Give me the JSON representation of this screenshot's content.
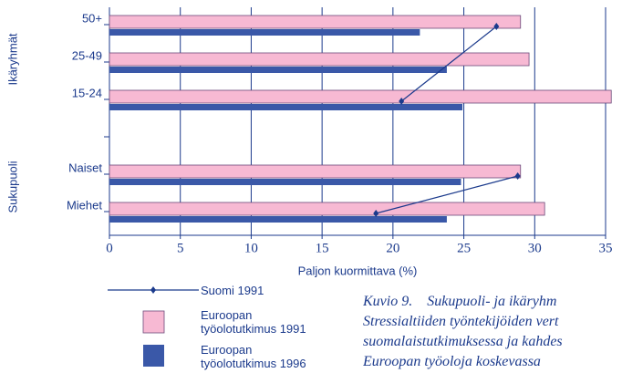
{
  "chart_data": {
    "type": "bar",
    "orientation": "horizontal",
    "categories": [
      "50+",
      "25-49",
      "15-24",
      null,
      "Naiset",
      "Miehet"
    ],
    "group_labels": [
      "Ikäryhmät",
      "Sukupuoli"
    ],
    "xlabel": "Paljon kuormittava (%)",
    "xlim": [
      0,
      35
    ],
    "xticks": [
      0,
      5,
      10,
      15,
      20,
      25,
      30,
      35
    ],
    "grid": true,
    "series": [
      {
        "name": "Suomi 1991",
        "type": "line",
        "color": "#1b3a8c",
        "values": [
          27.3,
          null,
          20.6,
          null,
          28.8,
          18.8
        ]
      },
      {
        "name": "Euroopan työolotutkimus 1991",
        "type": "bar",
        "color": "#f7b9d3",
        "values": [
          29,
          29.6,
          35.4,
          null,
          29,
          30.7
        ]
      },
      {
        "name": "Euroopan työolotutkimus 1996",
        "type": "bar",
        "color": "#3a58a8",
        "values": [
          21.9,
          23.8,
          24.9,
          null,
          24.8,
          23.8
        ]
      }
    ]
  },
  "caption": [
    "Kuvio 9.    Sukupuoli- ja ikäryhm",
    "Stressialtiiden työntekijöiden vert",
    "suomalaistutkimuksessa ja kahdes",
    "Euroopan työoloja koskevassa"
  ]
}
